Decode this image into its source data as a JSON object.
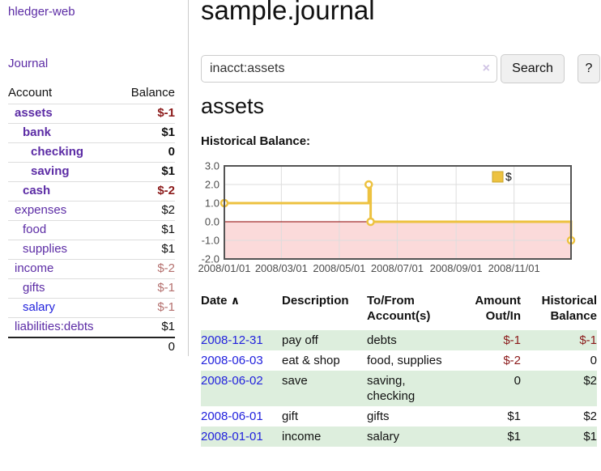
{
  "sidebar": {
    "app_title": "hledger-web",
    "nav_journal": "Journal",
    "table_headers": {
      "account": "Account",
      "balance": "Balance"
    },
    "accounts": [
      {
        "label": "assets",
        "indent": 0,
        "active": true,
        "balance": "$-1",
        "balance_tone": "neg-strong",
        "link_tone": "purple"
      },
      {
        "label": "bank",
        "indent": 1,
        "active": true,
        "balance": "$1",
        "balance_tone": "normal",
        "link_tone": "purple"
      },
      {
        "label": "checking",
        "indent": 2,
        "active": true,
        "balance": "0",
        "balance_tone": "normal",
        "link_tone": "purple"
      },
      {
        "label": "saving",
        "indent": 2,
        "active": true,
        "balance": "$1",
        "balance_tone": "normal",
        "link_tone": "purple"
      },
      {
        "label": "cash",
        "indent": 1,
        "active": true,
        "balance": "$-2",
        "balance_tone": "neg-strong",
        "link_tone": "purple"
      },
      {
        "label": "expenses",
        "indent": 0,
        "active": false,
        "balance": "$2",
        "balance_tone": "normal",
        "link_tone": "purple"
      },
      {
        "label": "food",
        "indent": 1,
        "active": false,
        "balance": "$1",
        "balance_tone": "normal",
        "link_tone": "purple"
      },
      {
        "label": "supplies",
        "indent": 1,
        "active": false,
        "balance": "$1",
        "balance_tone": "normal",
        "link_tone": "purple"
      },
      {
        "label": "income",
        "indent": 0,
        "active": false,
        "balance": "$-2",
        "balance_tone": "neg-soft",
        "link_tone": "purple"
      },
      {
        "label": "gifts",
        "indent": 1,
        "active": false,
        "balance": "$-1",
        "balance_tone": "neg-soft",
        "link_tone": "purple"
      },
      {
        "label": "salary",
        "indent": 1,
        "active": false,
        "balance": "$-1",
        "balance_tone": "neg-soft",
        "link_tone": "blue"
      },
      {
        "label": "liabilities:debts",
        "indent": 0,
        "active": false,
        "balance": "$1",
        "balance_tone": "normal",
        "link_tone": "purple"
      }
    ],
    "total": "0"
  },
  "header": {
    "title": "sample.journal"
  },
  "search": {
    "value": "inacct:assets",
    "clear_icon": "×",
    "search_label": "Search",
    "help_label": "?"
  },
  "main": {
    "account_heading": "assets",
    "chart_label": "Historical Balance:"
  },
  "chart_data": {
    "type": "line",
    "title": "Historical Balance:",
    "step": true,
    "series": [
      {
        "name": "$",
        "color": "#edc240",
        "points": [
          [
            "2008-01-01",
            1
          ],
          [
            "2008-06-01",
            2
          ],
          [
            "2008-06-03",
            0
          ],
          [
            "2008-12-31",
            -1
          ]
        ]
      }
    ],
    "x_start": "2008-01-01",
    "x_end": "2008-12-31",
    "x_tick_labels": [
      "2008/01/01",
      "2008/03/01",
      "2008/05/01",
      "2008/07/01",
      "2008/09/01",
      "2008/11/01"
    ],
    "y_tick_labels": [
      "3.0",
      "2.0",
      "1.0",
      "0.0",
      "-1.0",
      "-2.0"
    ],
    "y_ticks": [
      3,
      2,
      1,
      0,
      -1,
      -2
    ],
    "ylim": [
      -2,
      3
    ],
    "grid": true,
    "legend_position": "top-right",
    "legend_label": "$",
    "colors": {
      "line": "#edc240",
      "point_fill": "#ffffff",
      "negative_region": "#fbdada",
      "zero_line": "#8b0000",
      "border": "#545454",
      "gridline": "#dddddd",
      "axis_text": "#4d4d4d"
    }
  },
  "register": {
    "headers": {
      "date": "Date",
      "description": "Description",
      "accounts": "To/From Account(s)",
      "amount": "Amount Out/In",
      "balance": "Historical Balance"
    },
    "sort_icon": "∧",
    "rows": [
      {
        "date": "2008-12-31",
        "description": "pay off",
        "accounts": "debts",
        "amount": "$-1",
        "amount_neg": true,
        "balance": "$-1",
        "balance_neg": true,
        "shaded": true
      },
      {
        "date": "2008-06-03",
        "description": "eat & shop",
        "accounts": "food, supplies",
        "amount": "$-2",
        "amount_neg": true,
        "balance": "0",
        "balance_neg": false,
        "shaded": false
      },
      {
        "date": "2008-06-02",
        "description": "save",
        "accounts": "saving, checking",
        "amount": "0",
        "amount_neg": false,
        "balance": "$2",
        "balance_neg": false,
        "shaded": true
      },
      {
        "date": "2008-06-01",
        "description": "gift",
        "accounts": "gifts",
        "amount": "$1",
        "amount_neg": false,
        "balance": "$2",
        "balance_neg": false,
        "shaded": false
      },
      {
        "date": "2008-01-01",
        "description": "income",
        "accounts": "salary",
        "amount": "$1",
        "amount_neg": false,
        "balance": "$1",
        "balance_neg": false,
        "shaded": true
      }
    ]
  }
}
